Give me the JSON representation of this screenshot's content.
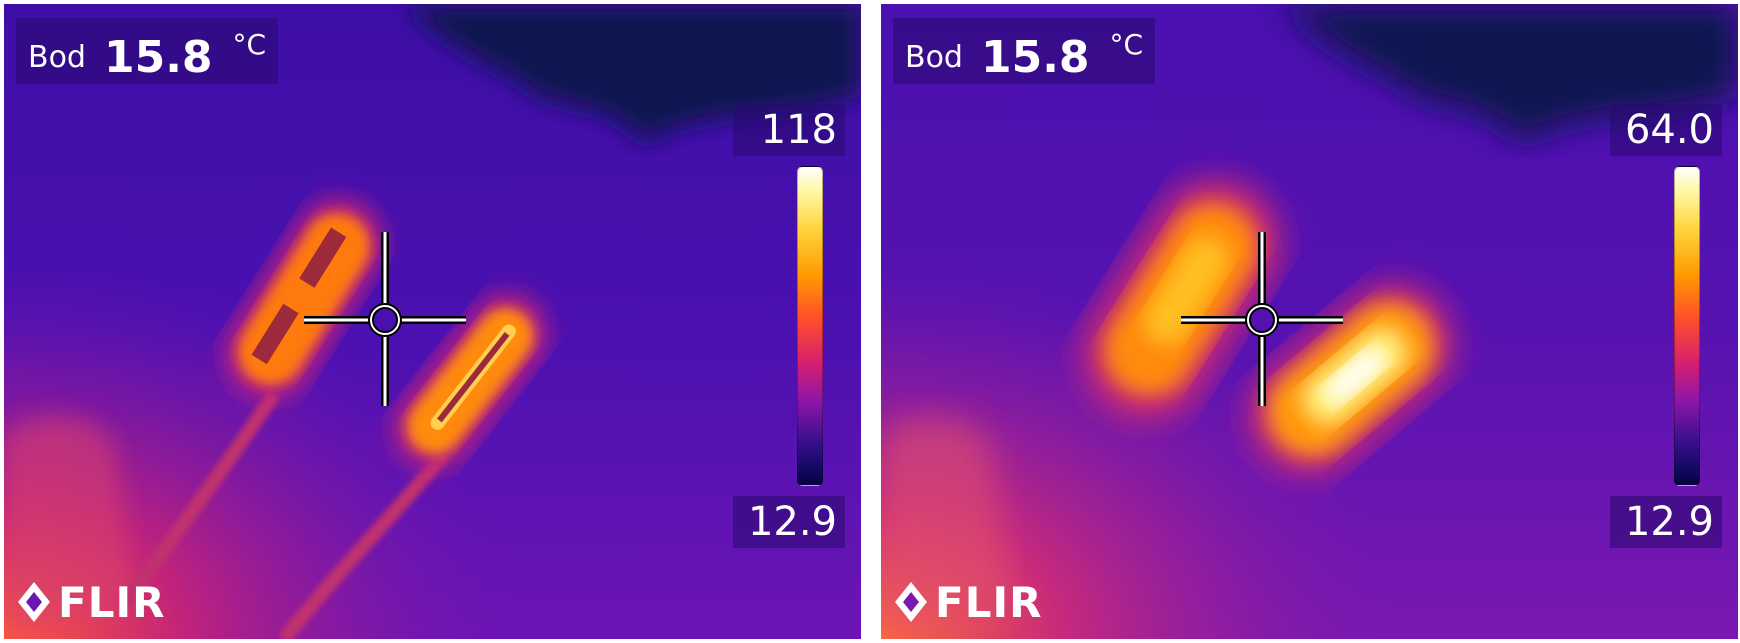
{
  "left": {
    "readout": {
      "label": "Bod",
      "value": "15.8",
      "unit": "°C"
    },
    "scale": {
      "max": "118",
      "min": "12.9"
    },
    "logo": {
      "text": "FLIR"
    }
  },
  "right": {
    "readout": {
      "label": "Bod",
      "value": "15.8",
      "unit": "°C"
    },
    "scale": {
      "max": "64.0",
      "min": "12.9"
    },
    "logo": {
      "text": "FLIR"
    }
  }
}
